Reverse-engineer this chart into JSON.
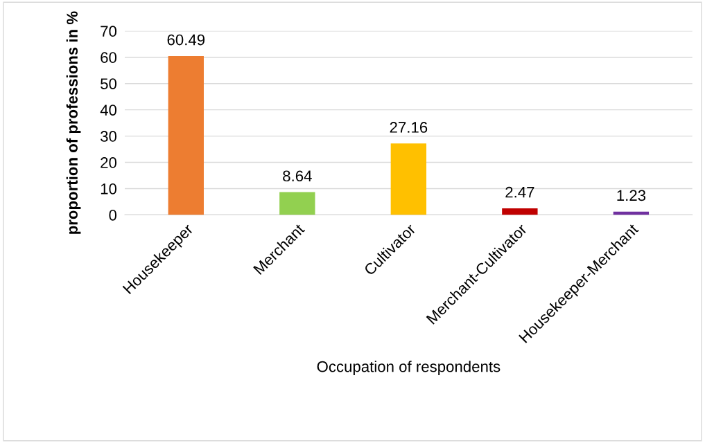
{
  "chart_data": {
    "type": "bar",
    "xlabel": "Occupation of respondents",
    "ylabel": "proportion of professions in %",
    "categories": [
      "Housekeeper",
      "Merchant",
      "Cultivator",
      "Merchant-Cultivator",
      "Housekeeper-Merchant"
    ],
    "values": [
      60.49,
      8.64,
      27.16,
      2.47,
      1.23
    ],
    "colors": [
      "#ed7d31",
      "#92d050",
      "#ffc000",
      "#c00000",
      "#7030a0"
    ],
    "ylim": [
      0,
      70
    ],
    "yticks": [
      0,
      10,
      20,
      30,
      40,
      50,
      60,
      70
    ],
    "grid": "y",
    "data_labels": true,
    "legend": false
  }
}
